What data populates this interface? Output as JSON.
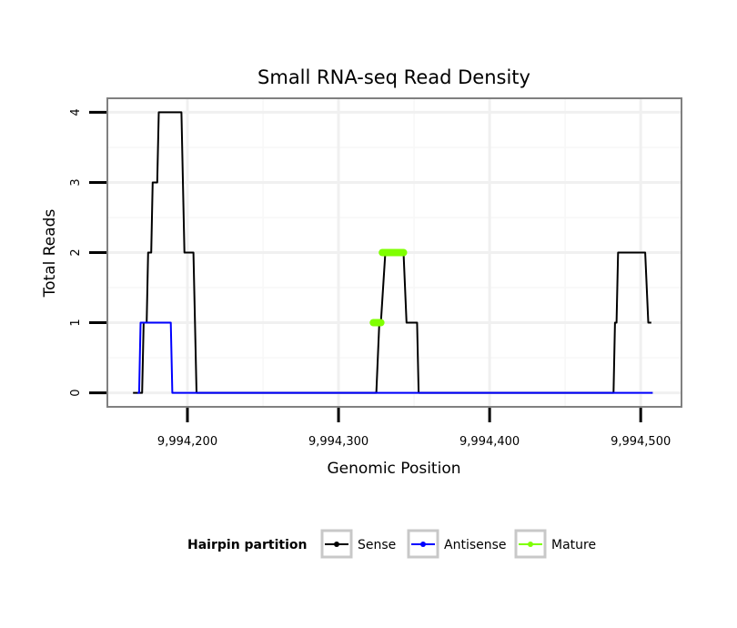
{
  "chart_data": {
    "type": "line",
    "title": "Small RNA-seq Read Density",
    "xlabel": "Genomic Position",
    "ylabel": "Total Reads",
    "xlim": [
      9994147,
      9994527
    ],
    "ylim": [
      -0.2,
      4.2
    ],
    "x_ticks": [
      {
        "value": 9994200,
        "label": "9,994,200"
      },
      {
        "value": 9994300,
        "label": "9,994,300"
      },
      {
        "value": 9994400,
        "label": "9,994,400"
      },
      {
        "value": 9994500,
        "label": "9,994,500"
      }
    ],
    "y_ticks": [
      {
        "value": 0,
        "label": "0"
      },
      {
        "value": 1,
        "label": "1"
      },
      {
        "value": 2,
        "label": "2"
      },
      {
        "value": 3,
        "label": "3"
      },
      {
        "value": 4,
        "label": "4"
      }
    ],
    "grid": true,
    "legend": {
      "title": "Hairpin partition",
      "position": "bottom",
      "entries": [
        {
          "name": "Sense",
          "color": "#000000"
        },
        {
          "name": "Antisense",
          "color": "#0000ff"
        },
        {
          "name": "Mature",
          "color": "#7fff00"
        }
      ]
    },
    "series": [
      {
        "name": "Sense",
        "color": "#000000",
        "x": [
          9994164,
          9994170,
          9994171,
          9994173,
          9994174,
          9994176,
          9994177,
          9994179,
          9994180,
          9994181,
          9994182,
          9994183,
          9994185,
          9994196,
          9994198,
          9994199,
          9994204,
          9994205,
          9994206,
          9994325,
          9994327,
          9994328,
          9994331,
          9994332,
          9994343,
          9994345,
          9994352,
          9994353,
          9994482,
          9994483,
          9994484,
          9994485,
          9994503,
          9994505,
          9994507
        ],
        "values": [
          0,
          0,
          1,
          1,
          2,
          2,
          3,
          3,
          3,
          4,
          4,
          4,
          4,
          4,
          2,
          2,
          2,
          1,
          0,
          0,
          1,
          1,
          2,
          2,
          2,
          1,
          1,
          0,
          0,
          1,
          1,
          2,
          2,
          1,
          1
        ]
      },
      {
        "name": "Antisense",
        "color": "#0000ff",
        "x": [
          9994167,
          9994168,
          9994169,
          9994189,
          9994190,
          9994508
        ],
        "values": [
          0,
          0,
          1,
          1,
          0,
          0
        ]
      },
      {
        "name": "Mature",
        "color": "#7fff00",
        "segments": [
          {
            "x": [
              9994323,
              9994328
            ],
            "values": [
              1,
              1
            ]
          },
          {
            "x": [
              9994329,
              9994343
            ],
            "values": [
              2,
              2
            ]
          }
        ]
      }
    ]
  }
}
